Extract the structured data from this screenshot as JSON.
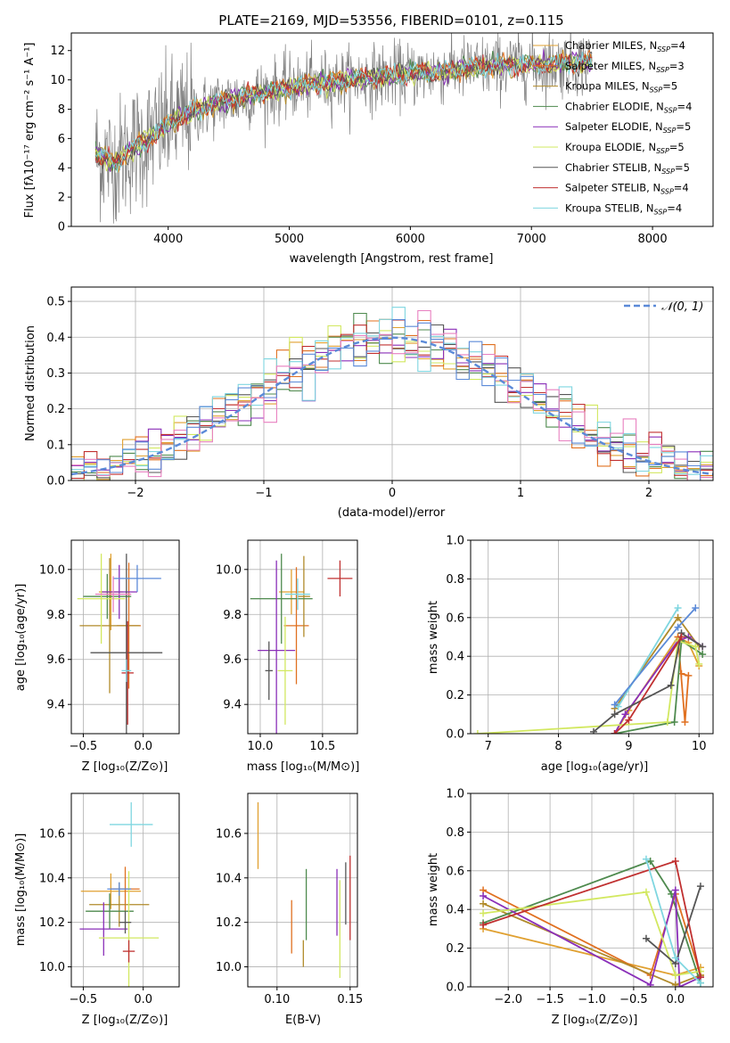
{
  "colors": {
    "chabrier_miles": "#e0a030",
    "salpeter_miles": "#e07020",
    "kroupa_miles": "#b08a2a",
    "chabrier_elodie": "#4e8a4e",
    "salpeter_elodie": "#8a2fb8",
    "kroupa_elodie": "#d2e860",
    "chabrier_stelib": "#555555",
    "salpeter_stelib": "#c03030",
    "kroupa_stelib": "#7fd6e0",
    "blue": "#5b8ad8",
    "pink": "#e880c0",
    "orange": "#e07020",
    "spectrum": "#808080",
    "grid": "#b0b0b0"
  },
  "chart_data": [
    {
      "id": "spectrum",
      "type": "line",
      "title": "PLATE=2169, MJD=53556, FIBERID=0101, z=0.115",
      "xlabel": "wavelength [Angstrom, rest frame]",
      "ylabel": "Flux [fλ10⁻¹⁷ erg cm⁻² s⁻¹ A⁻¹]",
      "xlim": [
        3200,
        8500
      ],
      "ylim": [
        0,
        13.2
      ],
      "xticks": [
        4000,
        5000,
        6000,
        7000,
        8000
      ],
      "yticks": [
        0,
        2,
        4,
        6,
        8,
        10,
        12
      ],
      "grid": false,
      "legend_position": "upper right",
      "continuum": {
        "x": [
          3400,
          3550,
          3700,
          3850,
          4000,
          4200,
          4400,
          4700,
          5000,
          5300,
          5600,
          6000,
          6400,
          6800,
          7200,
          7500
        ],
        "y": [
          5.0,
          4.3,
          5.3,
          6.0,
          7.0,
          7.8,
          8.4,
          9.0,
          9.5,
          9.8,
          10.1,
          10.4,
          10.7,
          11.0,
          11.1,
          11.2
        ]
      },
      "series": [
        {
          "name": "Chabrier MILES, N",
          "sub": "SSP",
          "suffix": "=4"
        },
        {
          "name": "Salpeter MILES, N",
          "sub": "SSP",
          "suffix": "=3"
        },
        {
          "name": "Kroupa MILES, N",
          "sub": "SSP",
          "suffix": "=5"
        },
        {
          "name": "Chabrier ELODIE, N",
          "sub": "SSP",
          "suffix": "=4"
        },
        {
          "name": "Salpeter ELODIE, N",
          "sub": "SSP",
          "suffix": "=5"
        },
        {
          "name": "Kroupa ELODIE, N",
          "sub": "SSP",
          "suffix": "=5"
        },
        {
          "name": "Chabrier STELIB, N",
          "sub": "SSP",
          "suffix": "=5"
        },
        {
          "name": "Salpeter STELIB, N",
          "sub": "SSP",
          "suffix": "=4"
        },
        {
          "name": "Kroupa STELIB, N",
          "sub": "SSP",
          "suffix": "=4"
        }
      ]
    },
    {
      "id": "residuals",
      "type": "line",
      "xlabel": "(data-model)/error",
      "ylabel": "Normed distribution",
      "xlim": [
        -2.5,
        2.5
      ],
      "ylim": [
        0,
        0.54
      ],
      "xticks": [
        -2,
        -1,
        0,
        1,
        2
      ],
      "xtick_labels": [
        "−2",
        "−1",
        "0",
        "1",
        "2"
      ],
      "yticks": [
        0.0,
        0.1,
        0.2,
        0.3,
        0.4,
        0.5
      ],
      "ytick_labels": [
        "0.0",
        "0.1",
        "0.2",
        "0.3",
        "0.4",
        "0.5"
      ],
      "grid": true,
      "legend_position": "upper right",
      "legend_label": "𝒩(0, 1)",
      "bin_width": 0.1,
      "bin_start": -2.5
    },
    {
      "id": "age_vs_Z",
      "type": "scatter",
      "xlabel": "Z [log₁₀(Z/Z⊙)]",
      "ylabel": "age  [log₁₀(age/yr)]",
      "xlim": [
        -0.6,
        0.3
      ],
      "ylim": [
        9.27,
        10.13
      ],
      "xticks": [
        -0.5,
        0.0
      ],
      "xtick_labels": [
        "−0.5",
        "0.0"
      ],
      "yticks": [
        9.4,
        9.6,
        9.8,
        10.0
      ],
      "ytick_labels": [
        "9.4",
        "9.6",
        "9.8",
        "10.0"
      ],
      "grid": true,
      "points": [
        {
          "x": -0.27,
          "xerr": 0.1,
          "y": 9.9,
          "yerr": 0.17
        },
        {
          "x": -0.12,
          "xerr": 0.1,
          "y": 9.75,
          "yerr": 0.28
        },
        {
          "x": -0.28,
          "xerr": 0.25,
          "y": 9.75,
          "yerr": 0.3
        },
        {
          "x": -0.3,
          "xerr": 0.2,
          "y": 9.88,
          "yerr": 0.1
        },
        {
          "x": -0.2,
          "xerr": 0.15,
          "y": 9.9,
          "yerr": 0.12
        },
        {
          "x": -0.35,
          "xerr": 0.2,
          "y": 9.87,
          "yerr": 0.2
        },
        {
          "x": -0.14,
          "xerr": 0.3,
          "y": 9.63,
          "yerr": 0.44
        },
        {
          "x": -0.13,
          "xerr": 0.05,
          "y": 9.54,
          "yerr": 0.23
        },
        {
          "x": -0.14,
          "xerr": 0.04,
          "y": 9.55,
          "yerr": 0.05
        },
        {
          "x": -0.05,
          "xerr": 0.2,
          "y": 9.96,
          "yerr": 0.06
        },
        {
          "x": -0.25,
          "xerr": 0.15,
          "y": 9.89,
          "yerr": 0.08
        }
      ]
    },
    {
      "id": "age_vs_mass",
      "type": "scatter",
      "xlabel": "mass [log₁₀(M/M⊙)]",
      "xlim": [
        9.9,
        10.78
      ],
      "ylim": [
        9.27,
        10.13
      ],
      "xticks": [
        10.0,
        10.5
      ],
      "xtick_labels": [
        "10.0",
        "10.5"
      ],
      "yticks": [
        9.4,
        9.6,
        9.8,
        10.0
      ],
      "ytick_labels": [
        "9.4",
        "9.6",
        "9.8",
        "10.0"
      ],
      "grid": true,
      "points": [
        {
          "x": 10.25,
          "xerr": 0.1,
          "y": 9.9,
          "yerr": 0.1
        },
        {
          "x": 10.29,
          "xerr": 0.1,
          "y": 9.75,
          "yerr": 0.26
        },
        {
          "x": 10.35,
          "xerr": 0.05,
          "y": 9.88,
          "yerr": 0.18
        },
        {
          "x": 10.17,
          "xerr": 0.25,
          "y": 9.87,
          "yerr": 0.2
        },
        {
          "x": 10.13,
          "xerr": 0.15,
          "y": 9.64,
          "yerr": 0.4
        },
        {
          "x": 10.2,
          "xerr": 0.06,
          "y": 9.55,
          "yerr": 0.24
        },
        {
          "x": 10.07,
          "xerr": 0.03,
          "y": 9.55,
          "yerr": 0.13
        },
        {
          "x": 10.64,
          "xerr": 0.1,
          "y": 9.96,
          "yerr": 0.08
        },
        {
          "x": 10.3,
          "xerr": 0.1,
          "y": 9.89,
          "yerr": 0.07
        }
      ]
    },
    {
      "id": "mass_weight_vs_age",
      "type": "line",
      "xlabel": "age  [log₁₀(age/yr)]",
      "ylabel": "mass weight",
      "xlim": [
        6.75,
        10.2
      ],
      "ylim": [
        0,
        1
      ],
      "xticks": [
        7,
        8,
        9,
        10
      ],
      "yticks": [
        0.0,
        0.2,
        0.4,
        0.6,
        0.8,
        1.0
      ],
      "ytick_labels": [
        "0.0",
        "0.2",
        "0.4",
        "0.6",
        "0.8",
        "1.0"
      ],
      "grid": true,
      "lines": [
        {
          "x": [
            8.8,
            9.0,
            9.7,
            9.85,
            10.0
          ],
          "y": [
            0.0,
            0.12,
            0.5,
            0.47,
            0.35
          ]
        },
        {
          "x": [
            9.7,
            9.8,
            9.85,
            9.75
          ],
          "y": [
            0.5,
            0.06,
            0.3,
            0.31
          ]
        },
        {
          "x": [
            8.8,
            9.7,
            10.0
          ],
          "y": [
            0.13,
            0.6,
            0.45
          ]
        },
        {
          "x": [
            8.8,
            9.65,
            9.75,
            10.05
          ],
          "y": [
            0.0,
            0.06,
            0.48,
            0.41
          ]
        },
        {
          "x": [
            8.8,
            8.95,
            9.7,
            9.85,
            10.05
          ],
          "y": [
            0.0,
            0.1,
            0.48,
            0.5,
            0.45
          ]
        },
        {
          "x": [
            6.85,
            9.55,
            9.7,
            9.95,
            10.0
          ],
          "y": [
            0.0,
            0.06,
            0.48,
            0.45,
            0.36
          ]
        },
        {
          "x": [
            8.5,
            8.8,
            9.6,
            9.75,
            10.05
          ],
          "y": [
            0.01,
            0.1,
            0.25,
            0.52,
            0.45
          ]
        },
        {
          "x": [
            8.8,
            9.0,
            9.75
          ],
          "y": [
            0.0,
            0.07,
            0.5
          ]
        },
        {
          "x": [
            8.85,
            9.7
          ],
          "y": [
            0.14,
            0.65
          ]
        },
        {
          "x": [
            8.8,
            9.7,
            9.95
          ],
          "y": [
            0.15,
            0.55,
            0.65
          ]
        }
      ]
    },
    {
      "id": "mass_vs_Z",
      "type": "scatter",
      "xlabel": "Z [log₁₀(Z/Z⊙)]",
      "ylabel": "mass [log₁₀(M/M⊙)]",
      "xlim": [
        -0.6,
        0.3
      ],
      "ylim": [
        9.91,
        10.78
      ],
      "xticks": [
        -0.5,
        0.0
      ],
      "xtick_labels": [
        "−0.5",
        "0.0"
      ],
      "yticks": [
        10.0,
        10.2,
        10.4,
        10.6
      ],
      "ytick_labels": [
        "10.0",
        "10.2",
        "10.4",
        "10.6"
      ],
      "grid": true,
      "points": [
        {
          "x": -0.27,
          "xerr": 0.25,
          "y": 10.34,
          "yerr": 0.08
        },
        {
          "x": -0.15,
          "xerr": 0.12,
          "y": 10.35,
          "yerr": 0.1
        },
        {
          "x": -0.2,
          "xerr": 0.25,
          "y": 10.28,
          "yerr": 0.1
        },
        {
          "x": -0.28,
          "xerr": 0.2,
          "y": 10.25,
          "yerr": 0.08
        },
        {
          "x": -0.33,
          "xerr": 0.2,
          "y": 10.17,
          "yerr": 0.12
        },
        {
          "x": -0.12,
          "xerr": 0.25,
          "y": 10.13,
          "yerr": 0.3
        },
        {
          "x": -0.15,
          "xerr": 0.05,
          "y": 10.2,
          "yerr": 0.05
        },
        {
          "x": -0.12,
          "xerr": 0.05,
          "y": 10.07,
          "yerr": 0.05
        },
        {
          "x": -0.1,
          "xerr": 0.18,
          "y": 10.64,
          "yerr": 0.1
        },
        {
          "x": -0.2,
          "xerr": 0.1,
          "y": 10.35,
          "yerr": 0.03
        }
      ]
    },
    {
      "id": "mass_vs_ebv",
      "type": "scatter",
      "xlabel": "E(B-V)",
      "xlim": [
        0.08,
        0.155
      ],
      "ylim": [
        9.91,
        10.78
      ],
      "xticks": [
        0.1,
        0.15
      ],
      "xtick_labels": [
        "0.10",
        "0.15"
      ],
      "yticks": [
        10.0,
        10.2,
        10.4,
        10.6
      ],
      "ytick_labels": [
        "10.0",
        "10.2",
        "10.4",
        "10.6"
      ],
      "grid": true,
      "points": [
        {
          "x": 0.087,
          "y": 10.59,
          "yerr": 0.15
        },
        {
          "x": 0.11,
          "y": 10.18,
          "yerr": 0.12
        },
        {
          "x": 0.118,
          "y": 10.06,
          "yerr": 0.06
        },
        {
          "x": 0.12,
          "y": 10.28,
          "yerr": 0.16
        },
        {
          "x": 0.141,
          "y": 10.29,
          "yerr": 0.15
        },
        {
          "x": 0.143,
          "y": 10.17,
          "yerr": 0.22
        },
        {
          "x": 0.147,
          "y": 10.33,
          "yerr": 0.14
        },
        {
          "x": 0.15,
          "y": 10.31,
          "yerr": 0.19
        }
      ]
    },
    {
      "id": "mass_weight_vs_Z",
      "type": "line",
      "xlabel": "Z [log₁₀(Z/Z⊙)]",
      "ylabel": "mass weight",
      "xlim": [
        -2.45,
        0.45
      ],
      "ylim": [
        0,
        1
      ],
      "xticks": [
        -2.0,
        -1.5,
        -1.0,
        -0.5,
        0.0
      ],
      "xtick_labels": [
        "−2.0",
        "−1.5",
        "−1.0",
        "−0.5",
        "0.0"
      ],
      "yticks": [
        0.0,
        0.2,
        0.4,
        0.6,
        0.8,
        1.0
      ],
      "ytick_labels": [
        "0.0",
        "0.2",
        "0.4",
        "0.6",
        "0.8",
        "1.0"
      ],
      "grid": true,
      "lines": [
        {
          "x": [
            -2.3,
            0.0,
            0.3
          ],
          "y": [
            0.3,
            0.06,
            0.1
          ]
        },
        {
          "x": [
            -2.3,
            -0.3,
            0.0,
            0.3
          ],
          "y": [
            0.5,
            0.06,
            0.48,
            0.06
          ]
        },
        {
          "x": [
            -2.3,
            0.0,
            0.3
          ],
          "y": [
            0.43,
            0.01,
            0.06
          ]
        },
        {
          "x": [
            -2.3,
            -0.3,
            -0.05,
            0.3
          ],
          "y": [
            0.33,
            0.65,
            0.48,
            0.02
          ]
        },
        {
          "x": [
            -2.3,
            -0.3,
            0.0,
            0.05,
            0.3
          ],
          "y": [
            0.47,
            0.01,
            0.5,
            0.0,
            0.05
          ]
        },
        {
          "x": [
            -2.3,
            -0.35,
            0.0,
            0.3
          ],
          "y": [
            0.38,
            0.49,
            0.06,
            0.08
          ]
        },
        {
          "x": [
            -0.35,
            0.0,
            0.3
          ],
          "y": [
            0.25,
            0.12,
            0.52
          ]
        },
        {
          "x": [
            -2.3,
            0.0,
            0.3
          ],
          "y": [
            0.32,
            0.65,
            0.05
          ]
        },
        {
          "x": [
            -0.35,
            0.0,
            0.3
          ],
          "y": [
            0.66,
            0.15,
            0.02
          ]
        }
      ]
    }
  ]
}
